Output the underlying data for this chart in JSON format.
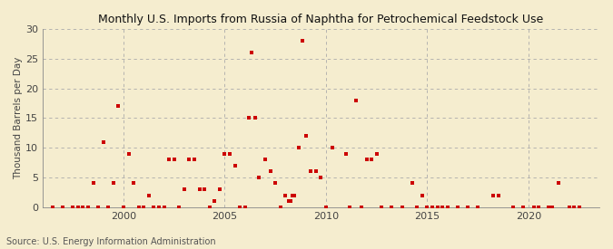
{
  "title": "Monthly U.S. Imports from Russia of Naphtha for Petrochemical Feedstock Use",
  "ylabel": "Thousand Barrels per Day",
  "source": "Source: U.S. Energy Information Administration",
  "background_color": "#f5edcf",
  "point_color": "#cc0000",
  "ylim": [
    0,
    30
  ],
  "yticks": [
    0,
    5,
    10,
    15,
    20,
    25,
    30
  ],
  "xlim_start": 1996.0,
  "xlim_end": 2023.5,
  "xticks": [
    2000,
    2005,
    2010,
    2015,
    2020
  ],
  "data_points": [
    [
      1996.5,
      0
    ],
    [
      1997.0,
      0
    ],
    [
      1997.5,
      0
    ],
    [
      1997.75,
      0
    ],
    [
      1998.0,
      0
    ],
    [
      1998.25,
      0
    ],
    [
      1998.5,
      4
    ],
    [
      1998.75,
      0
    ],
    [
      1999.0,
      11
    ],
    [
      1999.25,
      0
    ],
    [
      1999.5,
      4
    ],
    [
      1999.75,
      17
    ],
    [
      2000.0,
      0
    ],
    [
      2000.25,
      9
    ],
    [
      2000.5,
      4
    ],
    [
      2000.75,
      0
    ],
    [
      2001.0,
      0
    ],
    [
      2001.25,
      2
    ],
    [
      2001.5,
      0
    ],
    [
      2001.75,
      0
    ],
    [
      2002.0,
      0
    ],
    [
      2002.25,
      8
    ],
    [
      2002.5,
      8
    ],
    [
      2002.75,
      0
    ],
    [
      2003.0,
      3
    ],
    [
      2003.25,
      8
    ],
    [
      2003.5,
      8
    ],
    [
      2003.75,
      3
    ],
    [
      2004.0,
      3
    ],
    [
      2004.25,
      0
    ],
    [
      2004.5,
      1
    ],
    [
      2004.75,
      3
    ],
    [
      2005.0,
      9
    ],
    [
      2005.25,
      9
    ],
    [
      2005.5,
      7
    ],
    [
      2005.75,
      0
    ],
    [
      2006.0,
      0
    ],
    [
      2006.17,
      15
    ],
    [
      2006.33,
      26
    ],
    [
      2006.5,
      15
    ],
    [
      2006.67,
      5
    ],
    [
      2007.0,
      8
    ],
    [
      2007.25,
      6
    ],
    [
      2007.5,
      4
    ],
    [
      2007.75,
      0
    ],
    [
      2008.0,
      2
    ],
    [
      2008.17,
      1
    ],
    [
      2008.25,
      1
    ],
    [
      2008.33,
      2
    ],
    [
      2008.42,
      2
    ],
    [
      2008.67,
      10
    ],
    [
      2008.83,
      28
    ],
    [
      2009.0,
      12
    ],
    [
      2009.25,
      6
    ],
    [
      2009.5,
      6
    ],
    [
      2009.75,
      5
    ],
    [
      2010.0,
      0
    ],
    [
      2010.33,
      10
    ],
    [
      2011.0,
      9
    ],
    [
      2011.17,
      0
    ],
    [
      2011.5,
      18
    ],
    [
      2011.75,
      0
    ],
    [
      2012.0,
      8
    ],
    [
      2012.25,
      8
    ],
    [
      2012.5,
      9
    ],
    [
      2012.75,
      0
    ],
    [
      2013.25,
      0
    ],
    [
      2013.75,
      0
    ],
    [
      2014.25,
      4
    ],
    [
      2014.5,
      0
    ],
    [
      2014.75,
      2
    ],
    [
      2015.0,
      0
    ],
    [
      2015.25,
      0
    ],
    [
      2015.5,
      0
    ],
    [
      2015.75,
      0
    ],
    [
      2016.0,
      0
    ],
    [
      2016.5,
      0
    ],
    [
      2017.0,
      0
    ],
    [
      2017.5,
      0
    ],
    [
      2018.25,
      2
    ],
    [
      2018.5,
      2
    ],
    [
      2019.25,
      0
    ],
    [
      2019.75,
      0
    ],
    [
      2020.25,
      0
    ],
    [
      2020.5,
      0
    ],
    [
      2021.0,
      0
    ],
    [
      2021.17,
      0
    ],
    [
      2021.5,
      4
    ],
    [
      2022.0,
      0
    ],
    [
      2022.25,
      0
    ],
    [
      2022.5,
      0
    ]
  ]
}
